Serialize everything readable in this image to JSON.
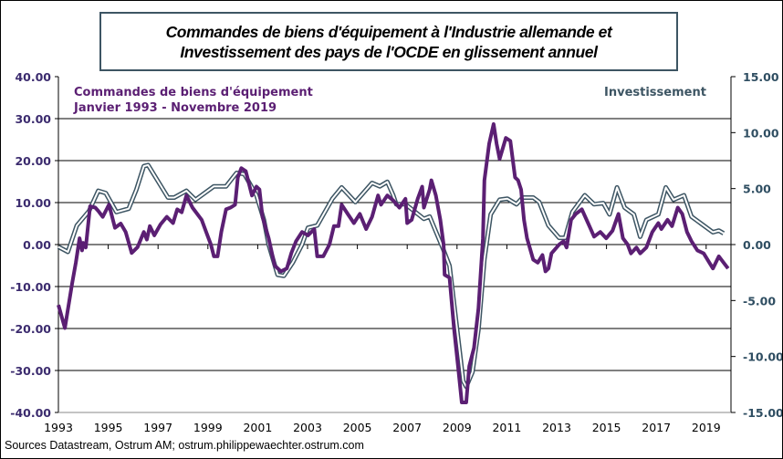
{
  "chart_data": {
    "type": "line",
    "title": "Commandes de biens d'équipement à l'Industrie allemande et Investissement des pays de l'OCDE en glissement annuel",
    "title_lines": [
      "Commandes de biens d'équipement à l'Industrie allemande et",
      "Investissement des pays de l'OCDE en glissement annuel"
    ],
    "source": "Sources Datastream, Ostrum AM; ostrum.philippewaechter.ostrum.com",
    "x_ticks": [
      "1993",
      "1995",
      "1997",
      "1999",
      "2001",
      "2003",
      "2005",
      "2007",
      "2009",
      "2011",
      "2013",
      "2015",
      "2017",
      "2019"
    ],
    "xlim": [
      1993,
      2019.95
    ],
    "y_left": {
      "lim": [
        -40,
        40
      ],
      "ticks": [
        "40.00",
        "30.00",
        "20.00",
        "10.00",
        "0.00",
        "-10.00",
        "-20.00",
        "-30.00",
        "-40.00"
      ]
    },
    "y_right": {
      "lim": [
        -15,
        15
      ],
      "ticks": [
        "15.00",
        "10.00",
        "5.00",
        "0.00",
        "-5.00",
        "-10.00",
        "-15.00"
      ]
    },
    "grid": true,
    "series": [
      {
        "name": "Commandes de biens d'équipement",
        "subtitle": "Janvier 1993 - Novembre 2019",
        "axis": "left",
        "color": "#5b1f73",
        "points": [
          [
            1993.0,
            -14.4
          ],
          [
            1993.26,
            -19.9
          ],
          [
            1993.55,
            -9.3
          ],
          [
            1993.7,
            -4.3
          ],
          [
            1993.85,
            1.5
          ],
          [
            1993.95,
            -1.4
          ],
          [
            1994.0,
            0.4
          ],
          [
            1994.1,
            -0.7
          ],
          [
            1994.27,
            9.1
          ],
          [
            1994.48,
            8.8
          ],
          [
            1994.6,
            8
          ],
          [
            1994.78,
            6.6
          ],
          [
            1995.03,
            9.5
          ],
          [
            1995.27,
            4
          ],
          [
            1995.5,
            5
          ],
          [
            1995.7,
            3
          ],
          [
            1995.94,
            -2
          ],
          [
            1996.18,
            -0.6
          ],
          [
            1996.43,
            3
          ],
          [
            1996.55,
            1.2
          ],
          [
            1996.67,
            4.4
          ],
          [
            1996.85,
            2.2
          ],
          [
            1997.1,
            4.8
          ],
          [
            1997.35,
            6.6
          ],
          [
            1997.6,
            5.1
          ],
          [
            1997.77,
            8.4
          ],
          [
            1997.95,
            7.7
          ],
          [
            1998.14,
            11.7
          ],
          [
            1998.38,
            8.8
          ],
          [
            1998.75,
            5.9
          ],
          [
            1998.93,
            3
          ],
          [
            1999.12,
            0
          ],
          [
            1999.24,
            -2.8
          ],
          [
            1999.39,
            -2.8
          ],
          [
            1999.54,
            3
          ],
          [
            1999.73,
            8.4
          ],
          [
            1999.91,
            8.8
          ],
          [
            2000.09,
            9.5
          ],
          [
            2000.2,
            16
          ],
          [
            2000.34,
            18.2
          ],
          [
            2000.52,
            17.5
          ],
          [
            2000.77,
            11.7
          ],
          [
            2000.95,
            13.8
          ],
          [
            2001.07,
            13.1
          ],
          [
            2001.19,
            6.6
          ],
          [
            2001.44,
            1.5
          ],
          [
            2001.68,
            -5
          ],
          [
            2001.93,
            -6.4
          ],
          [
            2002.17,
            -5.7
          ],
          [
            2002.35,
            -2
          ],
          [
            2002.54,
            0.8
          ],
          [
            2002.78,
            3
          ],
          [
            2003.02,
            2.2
          ],
          [
            2003.27,
            3.7
          ],
          [
            2003.39,
            -2.8
          ],
          [
            2003.63,
            -2.8
          ],
          [
            2003.88,
            0
          ],
          [
            2004.06,
            4.4
          ],
          [
            2004.24,
            4.4
          ],
          [
            2004.37,
            9.5
          ],
          [
            2004.61,
            7.3
          ],
          [
            2004.86,
            5.1
          ],
          [
            2005.1,
            7.3
          ],
          [
            2005.35,
            3.7
          ],
          [
            2005.59,
            6.6
          ],
          [
            2005.83,
            11.7
          ],
          [
            2005.95,
            9.5
          ],
          [
            2006.2,
            11.7
          ],
          [
            2006.44,
            10.5
          ],
          [
            2006.69,
            8.8
          ],
          [
            2006.93,
            10.9
          ],
          [
            2007.0,
            5.1
          ],
          [
            2007.18,
            5.9
          ],
          [
            2007.42,
            10.9
          ],
          [
            2007.6,
            13.8
          ],
          [
            2007.67,
            8.8
          ],
          [
            2007.9,
            13.1
          ],
          [
            2007.97,
            15.3
          ],
          [
            2008.15,
            11.7
          ],
          [
            2008.33,
            5.9
          ],
          [
            2008.46,
            0
          ],
          [
            2008.5,
            -7.2
          ],
          [
            2008.7,
            -7.9
          ],
          [
            2008.88,
            -20
          ],
          [
            2009.06,
            -30
          ],
          [
            2009.19,
            -37.6
          ],
          [
            2009.37,
            -37.6
          ],
          [
            2009.49,
            -29
          ],
          [
            2009.68,
            -24.6
          ],
          [
            2009.86,
            -15.2
          ],
          [
            2010.04,
            1.5
          ],
          [
            2010.1,
            15.3
          ],
          [
            2010.29,
            24
          ],
          [
            2010.47,
            28.7
          ],
          [
            2010.59,
            24
          ],
          [
            2010.71,
            20.4
          ],
          [
            2010.96,
            25.4
          ],
          [
            2011.14,
            24.7
          ],
          [
            2011.33,
            16
          ],
          [
            2011.45,
            15.3
          ],
          [
            2011.57,
            13.1
          ],
          [
            2011.69,
            5.9
          ],
          [
            2011.81,
            1.5
          ],
          [
            2012.06,
            -3.6
          ],
          [
            2012.24,
            -4.3
          ],
          [
            2012.43,
            -2.5
          ],
          [
            2012.55,
            -6.4
          ],
          [
            2012.67,
            -5.7
          ],
          [
            2012.79,
            -2.1
          ],
          [
            2013.1,
            0
          ],
          [
            2013.28,
            0.8
          ],
          [
            2013.4,
            -0.7
          ],
          [
            2013.58,
            5.9
          ],
          [
            2013.77,
            7.3
          ],
          [
            2014.01,
            8.4
          ],
          [
            2014.26,
            5.1
          ],
          [
            2014.5,
            1.9
          ],
          [
            2014.75,
            3
          ],
          [
            2014.99,
            1.5
          ],
          [
            2015.24,
            3.3
          ],
          [
            2015.48,
            7.3
          ],
          [
            2015.66,
            1.5
          ],
          [
            2015.85,
            0
          ],
          [
            2015.98,
            -2.1
          ],
          [
            2016.2,
            -0.7
          ],
          [
            2016.35,
            -2.1
          ],
          [
            2016.6,
            -0.7
          ],
          [
            2016.84,
            3
          ],
          [
            2017.08,
            5.1
          ],
          [
            2017.2,
            3.7
          ],
          [
            2017.45,
            5.9
          ],
          [
            2017.63,
            4.4
          ],
          [
            2017.86,
            8.8
          ],
          [
            2018.04,
            7.3
          ],
          [
            2018.23,
            3
          ],
          [
            2018.41,
            0.8
          ],
          [
            2018.65,
            -1.4
          ],
          [
            2018.9,
            -2.1
          ],
          [
            2019.27,
            -5.7
          ],
          [
            2019.51,
            -2.8
          ],
          [
            2019.7,
            -4.3
          ],
          [
            2019.88,
            -5.7
          ]
        ]
      },
      {
        "name": "Investissement",
        "axis": "right",
        "color": "#3d5563",
        "points": [
          [
            1993.0,
            -0.2
          ],
          [
            1993.38,
            -0.65
          ],
          [
            1993.74,
            1.7
          ],
          [
            1994.23,
            3
          ],
          [
            1994.6,
            4.8
          ],
          [
            1994.9,
            4.6
          ],
          [
            1995.33,
            2.9
          ],
          [
            1995.82,
            3.2
          ],
          [
            1996.13,
            4.9
          ],
          [
            1996.43,
            7
          ],
          [
            1996.6,
            7.1
          ],
          [
            1997.04,
            5.5
          ],
          [
            1997.4,
            4.2
          ],
          [
            1997.65,
            4.2
          ],
          [
            1998.14,
            4.8
          ],
          [
            1998.5,
            4
          ],
          [
            1999.24,
            5.2
          ],
          [
            1999.73,
            5.2
          ],
          [
            2000.15,
            6.4
          ],
          [
            2000.46,
            6.3
          ],
          [
            2000.95,
            4.4
          ],
          [
            2001.25,
            2.2
          ],
          [
            2001.44,
            0
          ],
          [
            2001.8,
            -2.7
          ],
          [
            2002.05,
            -2.8
          ],
          [
            2002.41,
            -1.6
          ],
          [
            2002.78,
            0
          ],
          [
            2003.02,
            1.5
          ],
          [
            2003.39,
            1.7
          ],
          [
            2004.0,
            4.1
          ],
          [
            2004.37,
            5.1
          ],
          [
            2004.92,
            3.8
          ],
          [
            2005.59,
            5.5
          ],
          [
            2005.9,
            5.2
          ],
          [
            2006.2,
            5.6
          ],
          [
            2006.44,
            4.4
          ],
          [
            2006.56,
            3.6
          ],
          [
            2006.93,
            3.6
          ],
          [
            2007.67,
            2.3
          ],
          [
            2007.9,
            2.5
          ],
          [
            2008.46,
            -0.5
          ],
          [
            2008.7,
            -1.9
          ],
          [
            2009.25,
            -12.2
          ],
          [
            2009.37,
            -12.7
          ],
          [
            2009.62,
            -11.4
          ],
          [
            2009.86,
            -7.6
          ],
          [
            2010.1,
            -1.3
          ],
          [
            2010.35,
            2.7
          ],
          [
            2010.71,
            4
          ],
          [
            2011.02,
            4.1
          ],
          [
            2011.39,
            3.6
          ],
          [
            2011.63,
            4.2
          ],
          [
            2012.06,
            4.2
          ],
          [
            2012.3,
            3.8
          ],
          [
            2012.67,
            1.7
          ],
          [
            2013.1,
            0.6
          ],
          [
            2013.34,
            0.6
          ],
          [
            2013.63,
            2.9
          ],
          [
            2014.13,
            4.4
          ],
          [
            2014.5,
            3.6
          ],
          [
            2014.87,
            3.7
          ],
          [
            2015.12,
            2.7
          ],
          [
            2015.42,
            5.1
          ],
          [
            2015.73,
            3.3
          ],
          [
            2016.1,
            2.7
          ],
          [
            2016.35,
            0.7
          ],
          [
            2016.6,
            2.2
          ],
          [
            2017.08,
            2.7
          ],
          [
            2017.38,
            5.1
          ],
          [
            2017.69,
            4
          ],
          [
            2018.11,
            4.4
          ],
          [
            2018.41,
            2.5
          ],
          [
            2018.78,
            1.9
          ],
          [
            2019.27,
            1.1
          ],
          [
            2019.51,
            1.25
          ],
          [
            2019.7,
            1.0
          ]
        ]
      }
    ]
  }
}
